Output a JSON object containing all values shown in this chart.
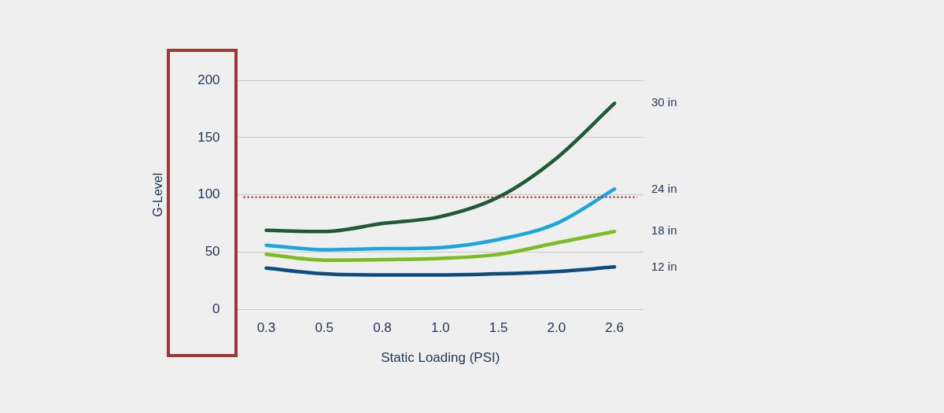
{
  "chart_data": {
    "type": "line",
    "xlabel": "Static Loading (PSI)",
    "ylabel": "G-Level",
    "categories": [
      "0.3",
      "0.5",
      "0.8",
      "1.0",
      "1.5",
      "2.0",
      "2.6"
    ],
    "series": [
      {
        "name": "30 in",
        "color": "#1e5a35",
        "values": [
          69,
          68,
          75,
          81,
          98,
          132,
          180
        ]
      },
      {
        "name": "24 in",
        "color": "#1aa6dc",
        "values": [
          56,
          52,
          53,
          54,
          61,
          75,
          105
        ]
      },
      {
        "name": "18 in",
        "color": "#7dbb22",
        "values": [
          48,
          43,
          43.5,
          44.5,
          48,
          58,
          68
        ]
      },
      {
        "name": "12 in",
        "color": "#0d4c7c",
        "values": [
          36,
          31,
          30,
          30,
          31,
          33,
          37
        ]
      }
    ],
    "ylim": [
      0,
      200
    ],
    "yticks": [
      0,
      50,
      100,
      150,
      200
    ],
    "grid": "y",
    "legend": false,
    "marker": "none",
    "line_style": "solid",
    "ref_lines": [
      {
        "axis": "y",
        "value": 98,
        "color": "#9b2a2a",
        "line_style": "dotted"
      }
    ]
  }
}
